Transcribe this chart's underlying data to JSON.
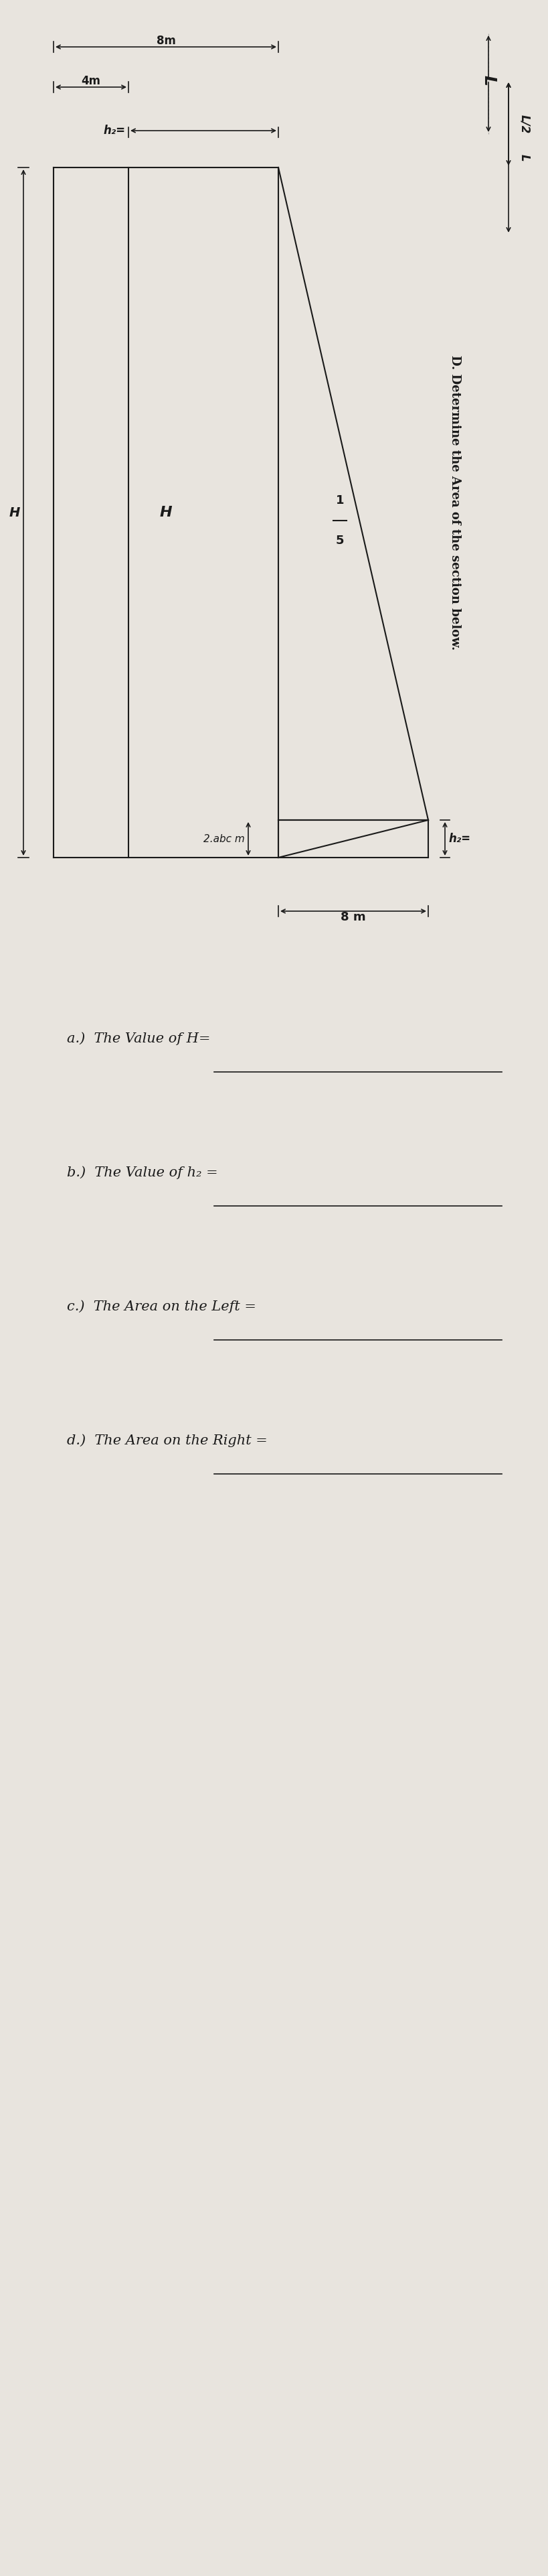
{
  "bg_color": "#e8e4de",
  "title_letter": "L",
  "problem_label": "D.",
  "problem_text": "Determine the Area of the section below.",
  "dim_L2": "L/2",
  "dim_L": "L",
  "dim_4m": "4m",
  "dim_8m_top": "8m",
  "dim_8m_bottom": "8 m",
  "dim_H": "H",
  "slope_label": "1",
  "slope_label2": "5",
  "h2_label_top": "h₂=",
  "h2_label_bottom": "h₂=",
  "dim_2abc": "2.abc m",
  "qa_label_a": "a.)  The Value of H=",
  "qa_label_b": "b.)  The Value of h₂ =",
  "qa_label_c": "c.)  The Area on the Left =",
  "qa_label_d": "d.)  The Area on the Right =",
  "answer_line": "___________________________",
  "font_color": "#1a1a1a"
}
